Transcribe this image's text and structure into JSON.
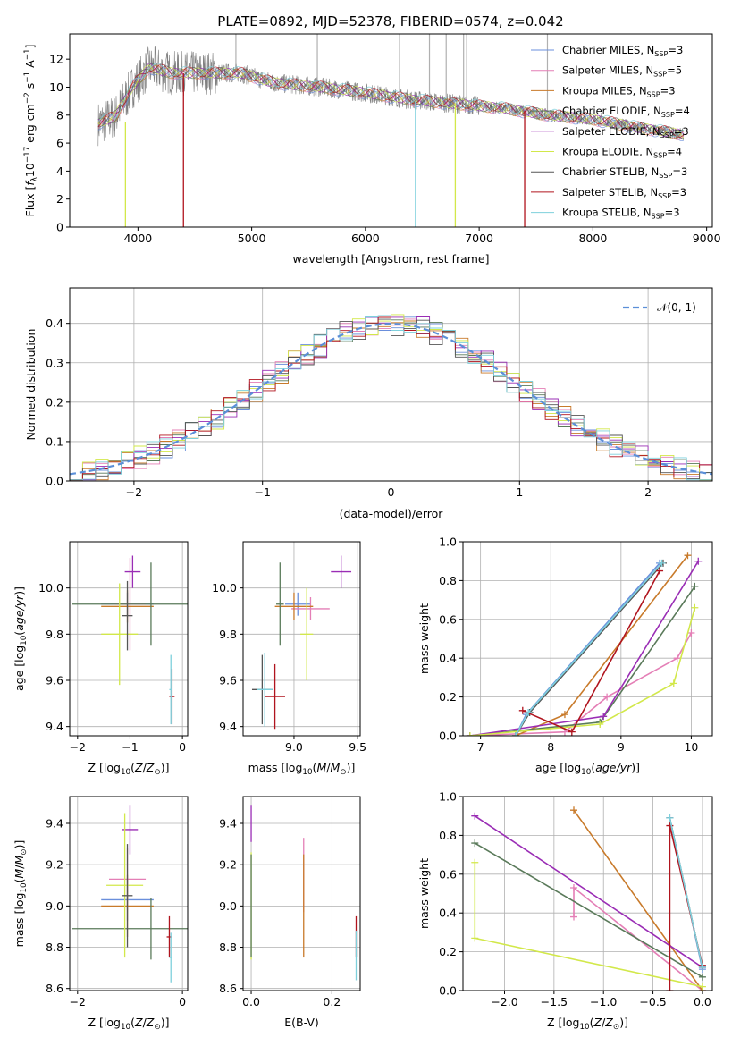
{
  "figure_title": "PLATE=0892, MJD=52378, FIBERID=0574, z=0.042",
  "model_colors": {
    "Chabrier MILES": "#6a8fdc",
    "Salpeter MILES": "#e47fb6",
    "Kroupa MILES": "#c87a2a",
    "Chabrier ELODIE": "#5a7a5a",
    "Salpeter ELODIE": "#9a2db5",
    "Kroupa ELODIE": "#d2e84a",
    "Chabrier STELIB": "#555555",
    "Salpeter STELIB": "#b0141e",
    "Kroupa STELIB": "#7ed0dc"
  },
  "chart_data": [
    {
      "id": "spectrum",
      "type": "line",
      "title": "PLATE=0892, MJD=52378, FIBERID=0574, z=0.042",
      "xlabel": "wavelength [Angstrom, rest frame]",
      "ylabel": "Flux [f_λ10^-17 erg cm^-2 s^-1 A^-1]",
      "xlim": [
        3400,
        9050
      ],
      "ylim": [
        0,
        13.8
      ],
      "xticks": [
        4000,
        5000,
        6000,
        7000,
        8000,
        9000
      ],
      "yticks": [
        0,
        2,
        4,
        6,
        8,
        10,
        12
      ],
      "data_color": "#808080",
      "data_continuum": [
        [
          3650,
          7.4
        ],
        [
          3800,
          7.9
        ],
        [
          3950,
          10.0
        ],
        [
          4100,
          11.4
        ],
        [
          4300,
          11.0
        ],
        [
          4600,
          11.0
        ],
        [
          4900,
          11.0
        ],
        [
          5200,
          10.3
        ],
        [
          5600,
          10.0
        ],
        [
          6000,
          9.6
        ],
        [
          6400,
          9.1
        ],
        [
          6800,
          8.8
        ],
        [
          7200,
          8.5
        ],
        [
          7600,
          8.0
        ],
        [
          8000,
          7.7
        ],
        [
          8400,
          7.1
        ],
        [
          8800,
          6.6
        ]
      ],
      "data_spikes_x": [
        4861,
        5577,
        6300,
        6563,
        6710,
        6863,
        6890,
        7600
      ],
      "legend": [
        {
          "label": "Chabrier MILES, N",
          "nssp": 3
        },
        {
          "label": "Salpeter MILES, N",
          "nssp": 5
        },
        {
          "label": "Kroupa MILES, N",
          "nssp": 3
        },
        {
          "label": "Chabrier ELODIE, N",
          "nssp": 4
        },
        {
          "label": "Salpeter ELODIE, N",
          "nssp": 3
        },
        {
          "label": "Kroupa ELODIE, N",
          "nssp": 4
        },
        {
          "label": "Chabrier STELIB, N",
          "nssp": 3
        },
        {
          "label": "Salpeter STELIB, N",
          "nssp": 3
        },
        {
          "label": "Kroupa STELIB, N",
          "nssp": 3
        }
      ],
      "legend_sub": "SSP",
      "legend_placement": "upper right",
      "model_drops": [
        {
          "model": "Kroupa ELODIE",
          "x": 3890,
          "from": 7.5,
          "to": 0
        },
        {
          "model": "Salpeter STELIB",
          "x": 4400,
          "from": 11.0,
          "to": 0
        },
        {
          "model": "Kroupa STELIB",
          "x": 6440,
          "from": 9.0,
          "to": 0
        },
        {
          "model": "Kroupa ELODIE",
          "x": 6790,
          "from": 8.8,
          "to": 0
        },
        {
          "model": "Salpeter STELIB",
          "x": 7400,
          "from": 8.3,
          "to": 0
        }
      ]
    },
    {
      "id": "residual-histogram",
      "type": "line",
      "xlabel": "(data-model)/error",
      "ylabel": "Normed distribution",
      "xlim": [
        -2.5,
        2.5
      ],
      "ylim": [
        0,
        0.49
      ],
      "xticks": [
        -2,
        -1,
        0,
        1,
        2
      ],
      "yticks": [
        0.0,
        0.1,
        0.2,
        0.3,
        0.4
      ],
      "grid": true,
      "legend": [
        {
          "label": "𝒩(0, 1)",
          "style": "dashed",
          "color": "#5b8fd8"
        }
      ],
      "legend_placement": "upper right",
      "bin_width": 0.1,
      "gaussian": {
        "mean": 0,
        "sigma": 1
      }
    },
    {
      "id": "age-vs-Z",
      "type": "scatter",
      "xlabel": "Z [log10(Z/Z⊙)]",
      "ylabel": "age  [log10(age/yr)]",
      "xlim": [
        -2.15,
        0.1
      ],
      "ylim": [
        9.36,
        10.2
      ],
      "xticks": [
        -2,
        -1,
        0
      ],
      "yticks": [
        9.4,
        9.6,
        9.8,
        10.0
      ],
      "grid": true,
      "errorbars": [
        {
          "model": "Chabrier MILES",
          "x": -1.05,
          "xerr": 0.5,
          "y": 9.93,
          "yerr": 0.05
        },
        {
          "model": "Salpeter MILES",
          "x": -1.0,
          "xerr": 0.3,
          "y": 9.93,
          "yerr": 0.2
        },
        {
          "model": "Kroupa MILES",
          "x": -1.05,
          "xerr": 0.5,
          "y": 9.92,
          "yerr": 0.07
        },
        {
          "model": "Chabrier ELODIE",
          "x": -0.6,
          "xerr": 1.5,
          "y": 9.93,
          "yerr": 0.18
        },
        {
          "model": "Salpeter ELODIE",
          "x": -0.95,
          "xerr": 0.15,
          "y": 10.07,
          "yerr": 0.07
        },
        {
          "model": "Kroupa ELODIE",
          "x": -1.2,
          "xerr": 0.35,
          "y": 9.8,
          "yerr": 0.22
        },
        {
          "model": "Chabrier STELIB",
          "x": -1.05,
          "xerr": 0.1,
          "y": 9.88,
          "yerr": 0.15
        },
        {
          "model": "Salpeter STELIB",
          "x": -0.2,
          "xerr": 0.05,
          "y": 9.53,
          "yerr": 0.12
        },
        {
          "model": "Kroupa STELIB",
          "x": -0.22,
          "xerr": 0.03,
          "y": 9.56,
          "yerr": 0.15
        }
      ]
    },
    {
      "id": "age-vs-mass",
      "type": "scatter",
      "xlabel": "mass [log10(M/M⊙)]",
      "ylabel": "",
      "xlim": [
        8.6,
        9.52
      ],
      "ylim": [
        9.36,
        10.2
      ],
      "xticks": [
        8.5,
        9.0,
        9.5
      ],
      "yticks": [
        9.4,
        9.6,
        9.8,
        10.0
      ],
      "grid": true,
      "errorbars": [
        {
          "model": "Chabrier MILES",
          "x": 9.03,
          "xerr": 0.1,
          "y": 9.93,
          "yerr": 0.05
        },
        {
          "model": "Salpeter MILES",
          "x": 9.13,
          "xerr": 0.15,
          "y": 9.91,
          "yerr": 0.05
        },
        {
          "model": "Kroupa MILES",
          "x": 9.0,
          "xerr": 0.15,
          "y": 9.92,
          "yerr": 0.06
        },
        {
          "model": "Chabrier ELODIE",
          "x": 8.89,
          "xerr": 0.03,
          "y": 9.93,
          "yerr": 0.18
        },
        {
          "model": "Salpeter ELODIE",
          "x": 9.37,
          "xerr": 0.08,
          "y": 10.07,
          "yerr": 0.07
        },
        {
          "model": "Kroupa ELODIE",
          "x": 9.1,
          "xerr": 0.05,
          "y": 9.8,
          "yerr": 0.2
        },
        {
          "model": "Chabrier STELIB",
          "x": 8.75,
          "xerr": 0.08,
          "y": 9.56,
          "yerr": 0.15
        },
        {
          "model": "Salpeter STELIB",
          "x": 8.85,
          "xerr": 0.08,
          "y": 9.53,
          "yerr": 0.14
        },
        {
          "model": "Kroupa STELIB",
          "x": 8.77,
          "xerr": 0.06,
          "y": 9.56,
          "yerr": 0.16
        }
      ]
    },
    {
      "id": "massweight-vs-age",
      "type": "line",
      "xlabel": "age  [log10(age/yr)]",
      "ylabel": "mass weight",
      "xlim": [
        6.75,
        10.3
      ],
      "ylim": [
        0,
        1.0
      ],
      "xticks": [
        7,
        8,
        9,
        10
      ],
      "yticks": [
        0.0,
        0.2,
        0.4,
        0.6,
        0.8,
        1.0
      ],
      "grid": true,
      "series": [
        {
          "model": "Chabrier MILES",
          "x": [
            7.5,
            7.65,
            9.55
          ],
          "y": [
            0.0,
            0.11,
            0.89
          ]
        },
        {
          "model": "Salpeter MILES",
          "x": [
            6.85,
            8.2,
            8.8,
            9.8,
            10.0
          ],
          "y": [
            0.0,
            0.02,
            0.2,
            0.4,
            0.53
          ]
        },
        {
          "model": "Kroupa MILES",
          "x": [
            7.5,
            8.2,
            9.95
          ],
          "y": [
            0.0,
            0.11,
            0.93
          ]
        },
        {
          "model": "Chabrier ELODIE",
          "x": [
            6.85,
            8.7,
            10.05
          ],
          "y": [
            0.0,
            0.07,
            0.77
          ]
        },
        {
          "model": "Salpeter ELODIE",
          "x": [
            6.85,
            8.75,
            10.1
          ],
          "y": [
            0.0,
            0.1,
            0.9
          ]
        },
        {
          "model": "Kroupa ELODIE",
          "x": [
            6.85,
            8.7,
            9.75,
            10.05
          ],
          "y": [
            0.0,
            0.06,
            0.27,
            0.66
          ]
        },
        {
          "model": "Chabrier STELIB",
          "x": [
            7.5,
            7.7,
            9.6
          ],
          "y": [
            0.0,
            0.12,
            0.89
          ]
        },
        {
          "model": "Salpeter STELIB",
          "x": [
            7.6,
            8.3,
            9.55
          ],
          "y": [
            0.13,
            0.02,
            0.85
          ]
        },
        {
          "model": "Kroupa STELIB",
          "x": [
            7.5,
            7.68,
            9.58
          ],
          "y": [
            0.0,
            0.12,
            0.89
          ]
        }
      ]
    },
    {
      "id": "mass-vs-Z",
      "type": "scatter",
      "xlabel": "Z [log10(Z/Z⊙)]",
      "ylabel": "mass [log10(M/M⊙)]",
      "xlim": [
        -2.15,
        0.1
      ],
      "ylim": [
        8.59,
        9.53
      ],
      "xticks": [
        -2,
        0
      ],
      "yticks": [
        8.6,
        8.8,
        9.0,
        9.2,
        9.4
      ],
      "grid": true,
      "errorbars": [
        {
          "model": "Chabrier MILES",
          "x": -1.05,
          "xerr": 0.5,
          "y": 9.03,
          "yerr": 0.1
        },
        {
          "model": "Salpeter MILES",
          "x": -1.05,
          "xerr": 0.35,
          "y": 9.13,
          "yerr": 0.15
        },
        {
          "model": "Kroupa MILES",
          "x": -1.05,
          "xerr": 0.5,
          "y": 9.0,
          "yerr": 0.15
        },
        {
          "model": "Chabrier ELODIE",
          "x": -0.6,
          "xerr": 1.5,
          "y": 8.89,
          "yerr": 0.15
        },
        {
          "model": "Salpeter ELODIE",
          "x": -1.0,
          "xerr": 0.15,
          "y": 9.37,
          "yerr": 0.12
        },
        {
          "model": "Kroupa ELODIE",
          "x": -1.1,
          "xerr": 0.35,
          "y": 9.1,
          "yerr": 0.35
        },
        {
          "model": "Chabrier STELIB",
          "x": -1.05,
          "xerr": 0.1,
          "y": 9.05,
          "yerr": 0.25
        },
        {
          "model": "Salpeter STELIB",
          "x": -0.25,
          "xerr": 0.05,
          "y": 8.85,
          "yerr": 0.1
        },
        {
          "model": "Kroupa STELIB",
          "x": -0.22,
          "xerr": 0.03,
          "y": 8.75,
          "yerr": 0.12
        }
      ]
    },
    {
      "id": "mass-vs-ebv",
      "type": "scatter",
      "xlabel": "E(B-V)",
      "ylabel": "",
      "xlim": [
        -0.02,
        0.27
      ],
      "ylim": [
        8.59,
        9.53
      ],
      "xticks": [
        0.0,
        0.2
      ],
      "yticks": [
        8.6,
        8.8,
        9.0,
        9.2,
        9.4
      ],
      "grid": true,
      "errorbars": [
        {
          "model": "Salpeter ELODIE",
          "x": 0.0,
          "xerr": 0.0,
          "y": 9.4,
          "yerr": 0.09
        },
        {
          "model": "Kroupa ELODIE",
          "x": 0.0,
          "xerr": 0.0,
          "y": 9.0,
          "yerr": 0.26
        },
        {
          "model": "Chabrier ELODIE",
          "x": 0.0,
          "xerr": 0.0,
          "y": 9.0,
          "yerr": 0.25
        },
        {
          "model": "Salpeter MILES",
          "x": 0.13,
          "xerr": 0.0,
          "y": 9.15,
          "yerr": 0.18
        },
        {
          "model": "Kroupa MILES",
          "x": 0.13,
          "xerr": 0.0,
          "y": 9.0,
          "yerr": 0.25
        },
        {
          "model": "Salpeter STELIB",
          "x": 0.26,
          "xerr": 0.0,
          "y": 8.85,
          "yerr": 0.1
        },
        {
          "model": "Kroupa STELIB",
          "x": 0.26,
          "xerr": 0.0,
          "y": 8.76,
          "yerr": 0.12
        }
      ]
    },
    {
      "id": "massweight-vs-Z",
      "type": "line",
      "xlabel": "Z [log10(Z/Z⊙)]",
      "ylabel": "mass weight",
      "xlim": [
        -2.42,
        0.1
      ],
      "ylim": [
        0,
        1.0
      ],
      "xticks": [
        -2.0,
        -1.5,
        -1.0,
        -0.5,
        0.0
      ],
      "yticks": [
        0.0,
        0.2,
        0.4,
        0.6,
        0.8,
        1.0
      ],
      "grid": true,
      "series": [
        {
          "model": "Chabrier MILES",
          "x": [
            -0.33,
            0.0
          ],
          "y": [
            0.89,
            0.11
          ]
        },
        {
          "model": "Salpeter MILES",
          "x": [
            -1.3,
            -1.3,
            0.0
          ],
          "y": [
            0.38,
            0.53,
            0.0
          ]
        },
        {
          "model": "Kroupa MILES",
          "x": [
            -1.3,
            0.0
          ],
          "y": [
            0.93,
            0.0
          ]
        },
        {
          "model": "Chabrier ELODIE",
          "x": [
            -2.3,
            0.0
          ],
          "y": [
            0.76,
            0.07
          ]
        },
        {
          "model": "Salpeter ELODIE",
          "x": [
            -2.3,
            0.0
          ],
          "y": [
            0.9,
            0.12
          ]
        },
        {
          "model": "Kroupa ELODIE",
          "x": [
            -2.3,
            -2.3,
            0.0
          ],
          "y": [
            0.66,
            0.27,
            0.02
          ]
        },
        {
          "model": "Chabrier STELIB",
          "x": [
            -0.33,
            0.0
          ],
          "y": [
            0.89,
            0.12
          ]
        },
        {
          "model": "Salpeter STELIB",
          "x": [
            -0.33,
            -0.33,
            0.0
          ],
          "y": [
            0.0,
            0.85,
            0.13
          ]
        },
        {
          "model": "Kroupa STELIB",
          "x": [
            -0.33,
            0.0
          ],
          "y": [
            0.89,
            0.12
          ]
        }
      ]
    }
  ]
}
